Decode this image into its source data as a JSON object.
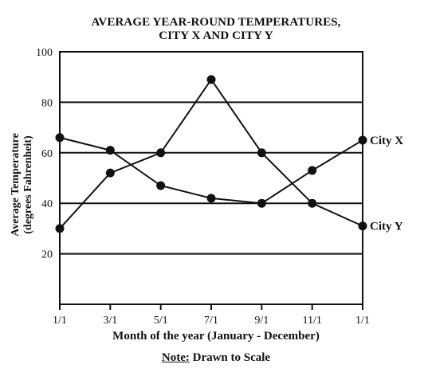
{
  "chart_data": {
    "type": "line",
    "title": "AVERAGE YEAR-ROUND TEMPERATURES,",
    "subtitle": "CITY X AND CITY Y",
    "xlabel": "Month of the year (January - December)",
    "ylabel_line1": "Average Temperature",
    "ylabel_line2": "(degrees Fahrenheit)",
    "note_prefix": "Note:",
    "note_text": " Drawn to Scale",
    "categories": [
      "1/1",
      "3/1",
      "5/1",
      "7/1",
      "9/1",
      "11/1",
      "1/1"
    ],
    "ylim": [
      0,
      100
    ],
    "yticks": [
      20,
      40,
      60,
      80,
      100
    ],
    "grid": true,
    "series": [
      {
        "name": "City Y",
        "values": [
          30,
          52,
          60,
          89,
          60,
          40,
          31
        ]
      },
      {
        "name": "City X",
        "values": [
          66,
          61,
          47,
          42,
          40,
          53,
          65
        ]
      }
    ]
  }
}
